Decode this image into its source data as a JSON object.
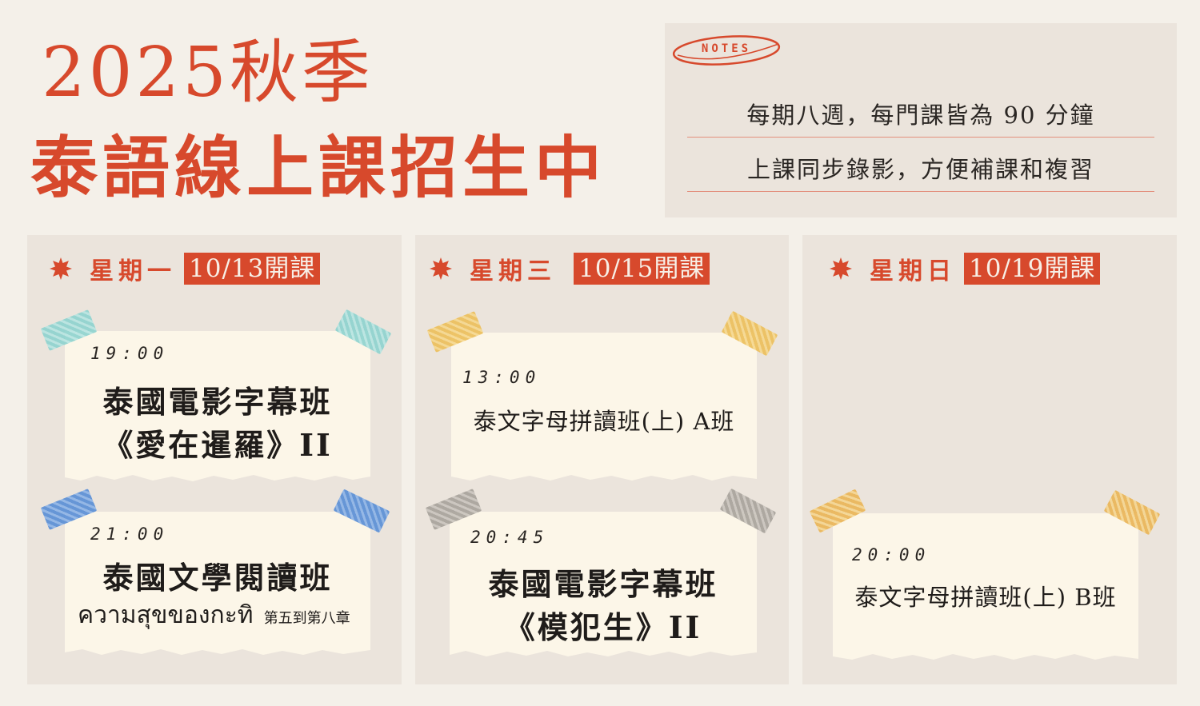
{
  "header": {
    "title_line1": "2025秋季",
    "title_line2": "泰語線上課招生中"
  },
  "notes": {
    "tag": "NOTES",
    "items": [
      "每期八週，每門課皆為 90 分鐘",
      "上課同步錄影，方便補課和複習"
    ]
  },
  "columns": [
    {
      "day": "星期一",
      "start": "10/13開課",
      "classes": [
        {
          "time": "19:00",
          "line1": "泰國電影字幕班",
          "line2": "《愛在暹羅》II"
        },
        {
          "time": "21:00",
          "line1": "泰國文學閱讀班",
          "line2_thai": "ความสุขของกะทิ",
          "line2_note": "第五到第八章"
        }
      ]
    },
    {
      "day": "星期三",
      "start": "10/15開課",
      "classes": [
        {
          "time": "13:00",
          "line1": "泰文字母拼讀班(上) A班"
        },
        {
          "time": "20:45",
          "line1": "泰國電影字幕班",
          "line2": "《模犯生》II"
        }
      ]
    },
    {
      "day": "星期日",
      "start": "10/19開課",
      "classes": [
        {
          "time": "20:00",
          "line1": "泰文字母拼讀班(上) B班"
        }
      ]
    }
  ],
  "colors": {
    "accent": "#d7492c",
    "background": "#f4f0e9",
    "panel": "#ebe4dc",
    "card": "#fcf6e8",
    "tape_teal": "#8fd3cf",
    "tape_blue": "#5b8fd6",
    "tape_yellow": "#ecbf5c",
    "tape_gray": "#a8a39c",
    "tape_orange": "#eab558"
  }
}
